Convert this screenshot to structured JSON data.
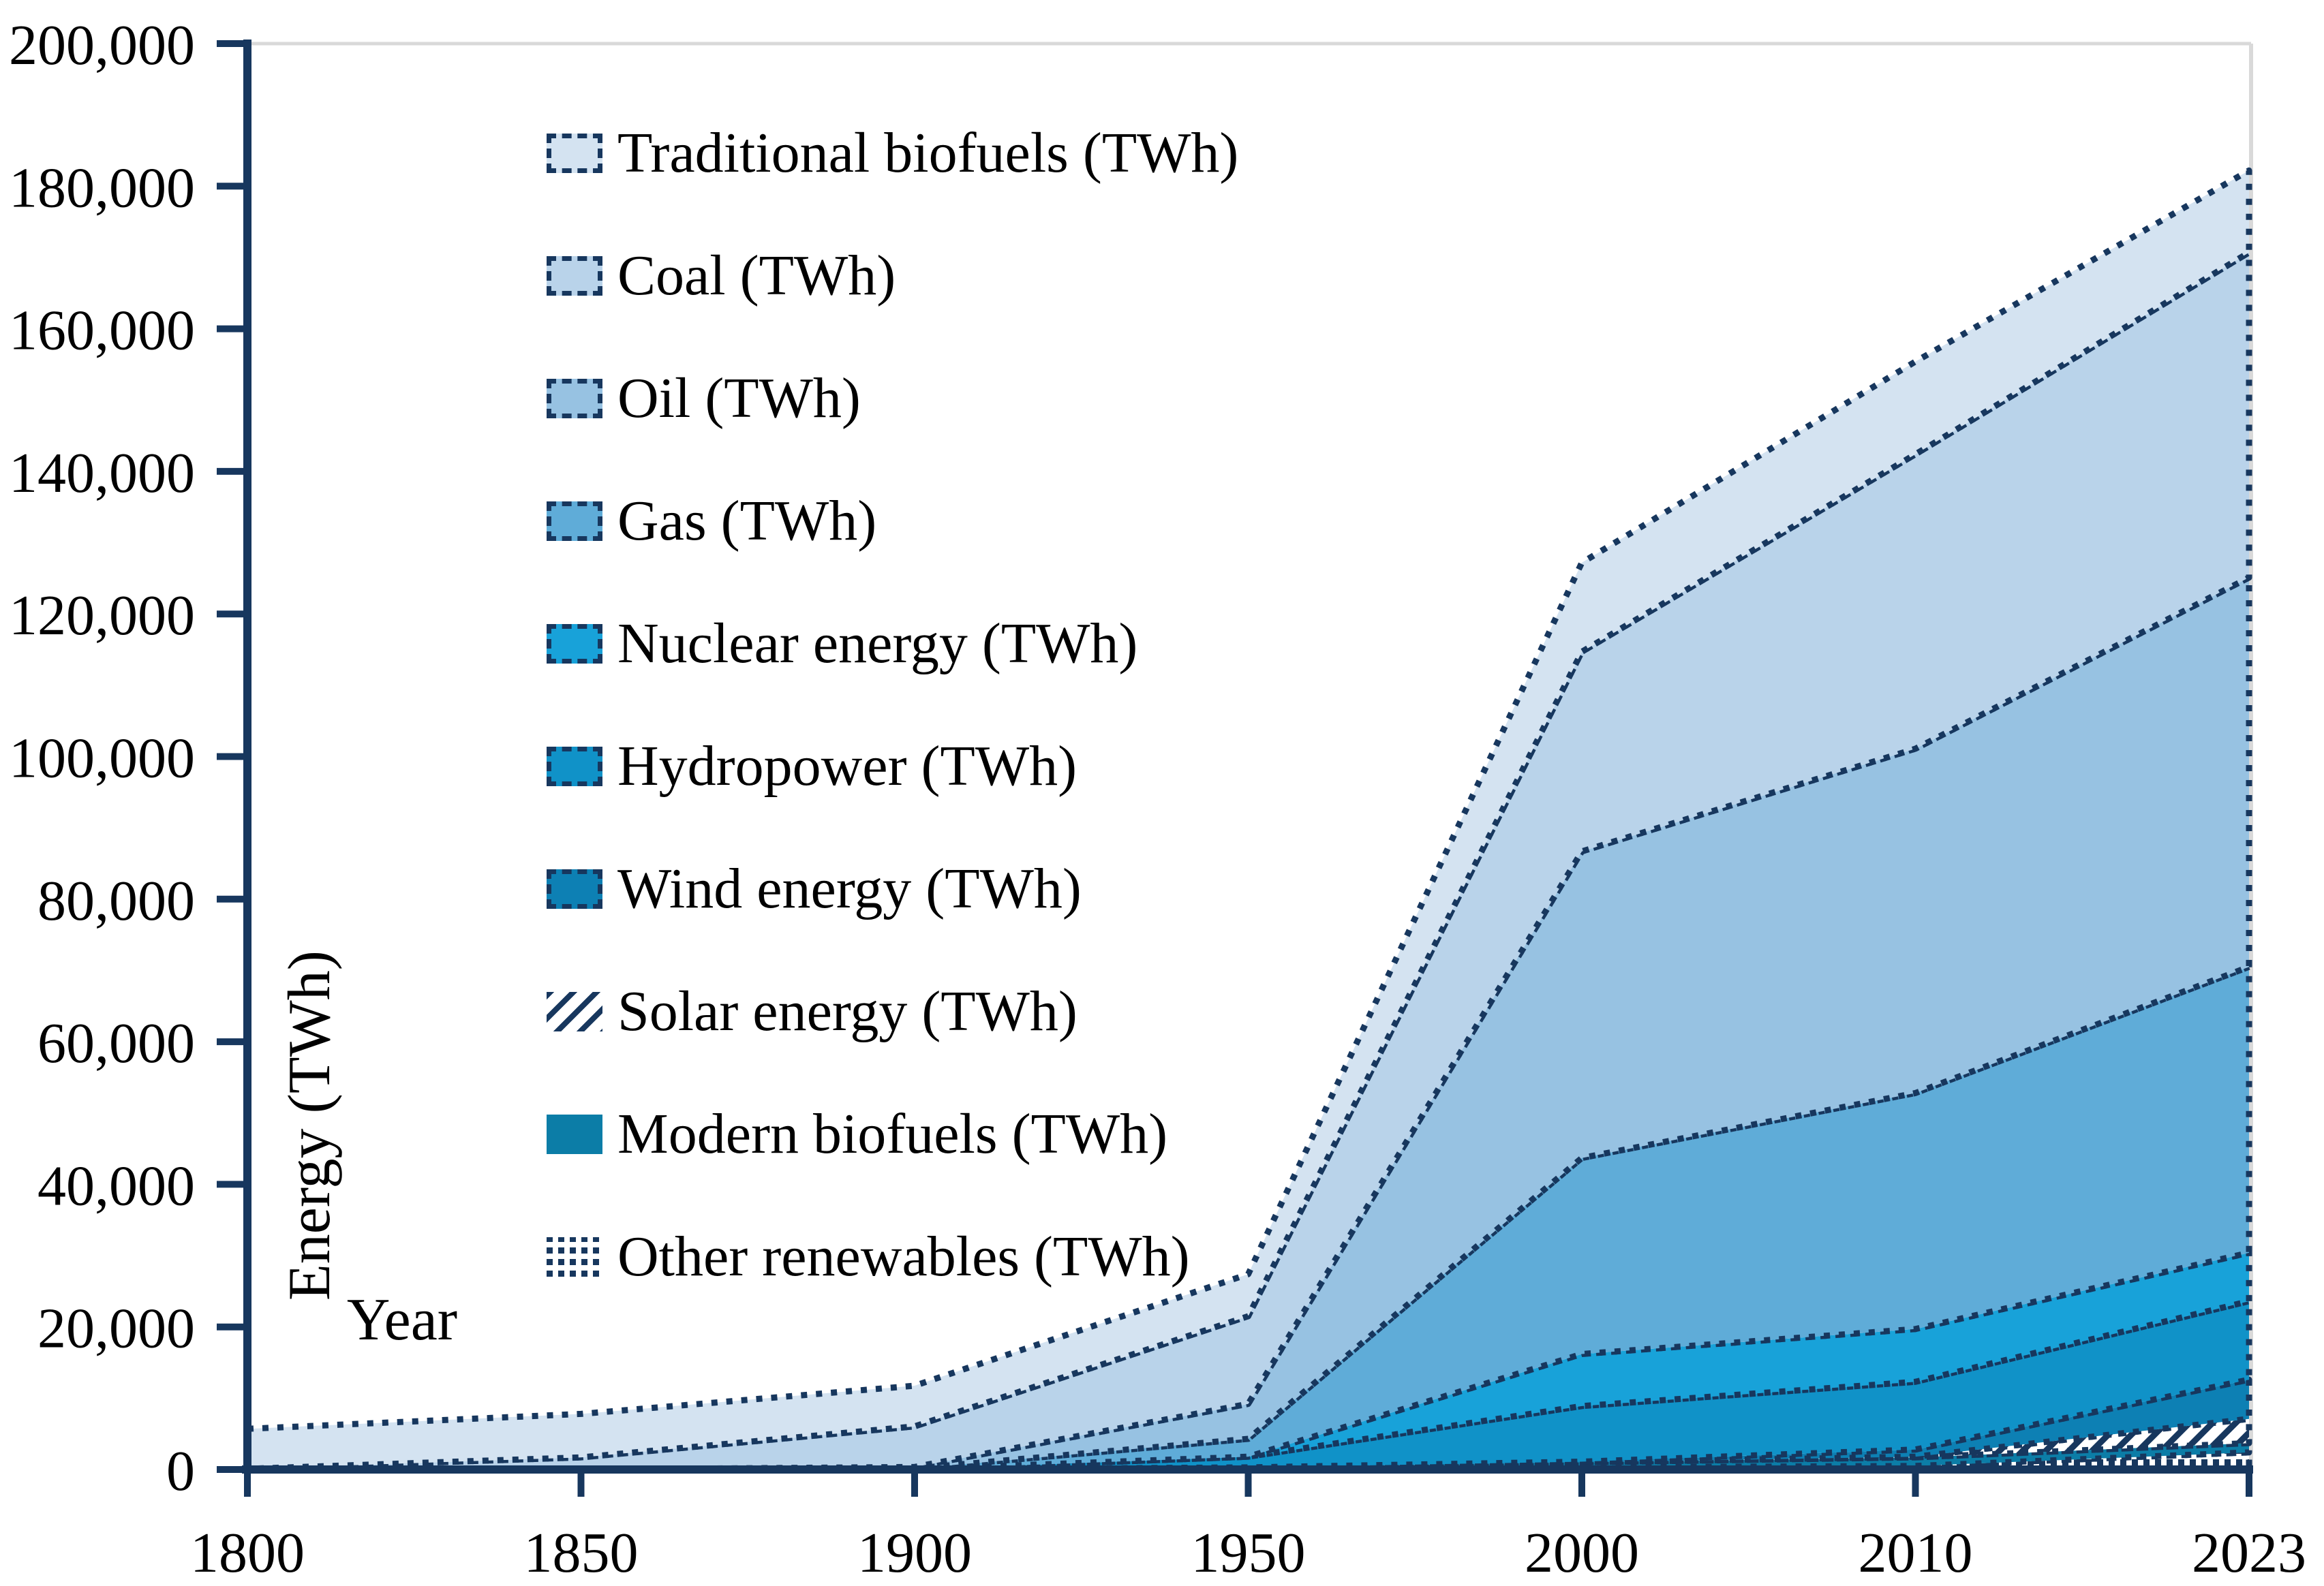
{
  "figure": {
    "background": "#ffffff",
    "axis_color": "#17375e",
    "grid_color": "#d9d9d9",
    "text_color": "#000000"
  },
  "axes": {
    "y_tick_labels": [
      "0",
      "20,000",
      "40,000",
      "60,000",
      "80,000",
      "100,000",
      "120,000",
      "140,000",
      "160,000",
      "180,000",
      "200,000"
    ],
    "x_tick_labels": [
      "1800",
      "1850",
      "1900",
      "1950",
      "2000",
      "2010",
      "2023"
    ]
  },
  "legend": {
    "items": [
      {
        "label": "Traditional biofuels (TWh)",
        "swatch": {
          "type": "solid",
          "color": "#d4e3f1",
          "border": true
        }
      },
      {
        "label": "Coal (TWh)",
        "swatch": {
          "type": "solid",
          "color": "#b9d3ea",
          "border": true
        }
      },
      {
        "label": "Oil (TWh)",
        "swatch": {
          "type": "solid",
          "color": "#97c2e2",
          "border": true
        }
      },
      {
        "label": "Gas (TWh)",
        "swatch": {
          "type": "solid",
          "color": "#5facd8",
          "border": true
        }
      },
      {
        "label": "Nuclear energy (TWh)",
        "swatch": {
          "type": "solid",
          "color": "#18a2d9",
          "border": true
        }
      },
      {
        "label": "Hydropower (TWh)",
        "swatch": {
          "type": "solid",
          "color": "#1092c8",
          "border": true
        }
      },
      {
        "label": "Wind energy (TWh)",
        "swatch": {
          "type": "solid",
          "color": "#0d80b4",
          "border": true
        }
      },
      {
        "label": "Solar energy (TWh)",
        "swatch": {
          "type": "hatch",
          "color": "#17375e",
          "border": false
        }
      },
      {
        "label": "Modern biofuels (TWh)",
        "swatch": {
          "type": "solid",
          "color": "#0c7da7",
          "border": false
        }
      },
      {
        "label": "Other renewables (TWh)",
        "swatch": {
          "type": "dots",
          "color": "#17375e",
          "border": false
        }
      }
    ]
  },
  "chart_data": {
    "type": "area",
    "stacked": true,
    "title": "",
    "xlabel": "Year",
    "ylabel": "Energy (TWh)",
    "x": [
      "1800",
      "1850",
      "1900",
      "1950",
      "2000",
      "2010",
      "2023"
    ],
    "ylim": [
      0,
      200000
    ],
    "y_tick_interval": 20000,
    "grid": "top boundary gridline only",
    "legend_position": "upper-left inside plot area",
    "stack_order_bottom_to_top": [
      "Other renewables (TWh)",
      "Modern biofuels (TWh)",
      "Solar energy (TWh)",
      "Wind energy (TWh)",
      "Hydropower (TWh)",
      "Nuclear energy (TWh)",
      "Gas (TWh)",
      "Oil (TWh)",
      "Coal (TWh)",
      "Traditional biofuels (TWh)"
    ],
    "series": [
      {
        "name": "Traditional biofuels (TWh)",
        "fill": "#d4e3f1",
        "values": [
          5600,
          6100,
          5700,
          5900,
          12500,
          13000,
          11500
        ]
      },
      {
        "name": "Coal (TWh)",
        "fill": "#b9d3ea",
        "values": [
          100,
          1700,
          5700,
          12300,
          28000,
          41300,
          45600
        ]
      },
      {
        "name": "Oil (TWh)",
        "fill": "#97c2e2",
        "values": [
          0,
          0,
          200,
          4900,
          43000,
          48300,
          54600
        ]
      },
      {
        "name": "Gas (TWh)",
        "fill": "#5facd8",
        "values": [
          0,
          0,
          100,
          2500,
          27500,
          33100,
          40100
        ]
      },
      {
        "name": "Nuclear energy (TWh)",
        "fill": "#18a2d9",
        "values": [
          0,
          0,
          0,
          0,
          7300,
          7400,
          6800
        ]
      },
      {
        "name": "Hydropower (TWh)",
        "fill": "#1092c8",
        "values": [
          0,
          0,
          50,
          1500,
          7800,
          9500,
          11000
        ]
      },
      {
        "name": "Wind energy (TWh)",
        "fill": "#0d80b4",
        "values": [
          0,
          0,
          0,
          0,
          100,
          1000,
          5500
        ]
      },
      {
        "name": "Solar energy (TWh)",
        "fill": "pattern:hatch",
        "values": [
          0,
          0,
          0,
          0,
          0,
          100,
          3400
        ]
      },
      {
        "name": "Modern biofuels (TWh)",
        "fill": "#0c7da7",
        "values": [
          0,
          0,
          0,
          300,
          700,
          1200,
          1300
        ]
      },
      {
        "name": "Other renewables (TWh)",
        "fill": "pattern:dots",
        "values": [
          0,
          0,
          0,
          0,
          300,
          500,
          2400
        ]
      }
    ]
  }
}
